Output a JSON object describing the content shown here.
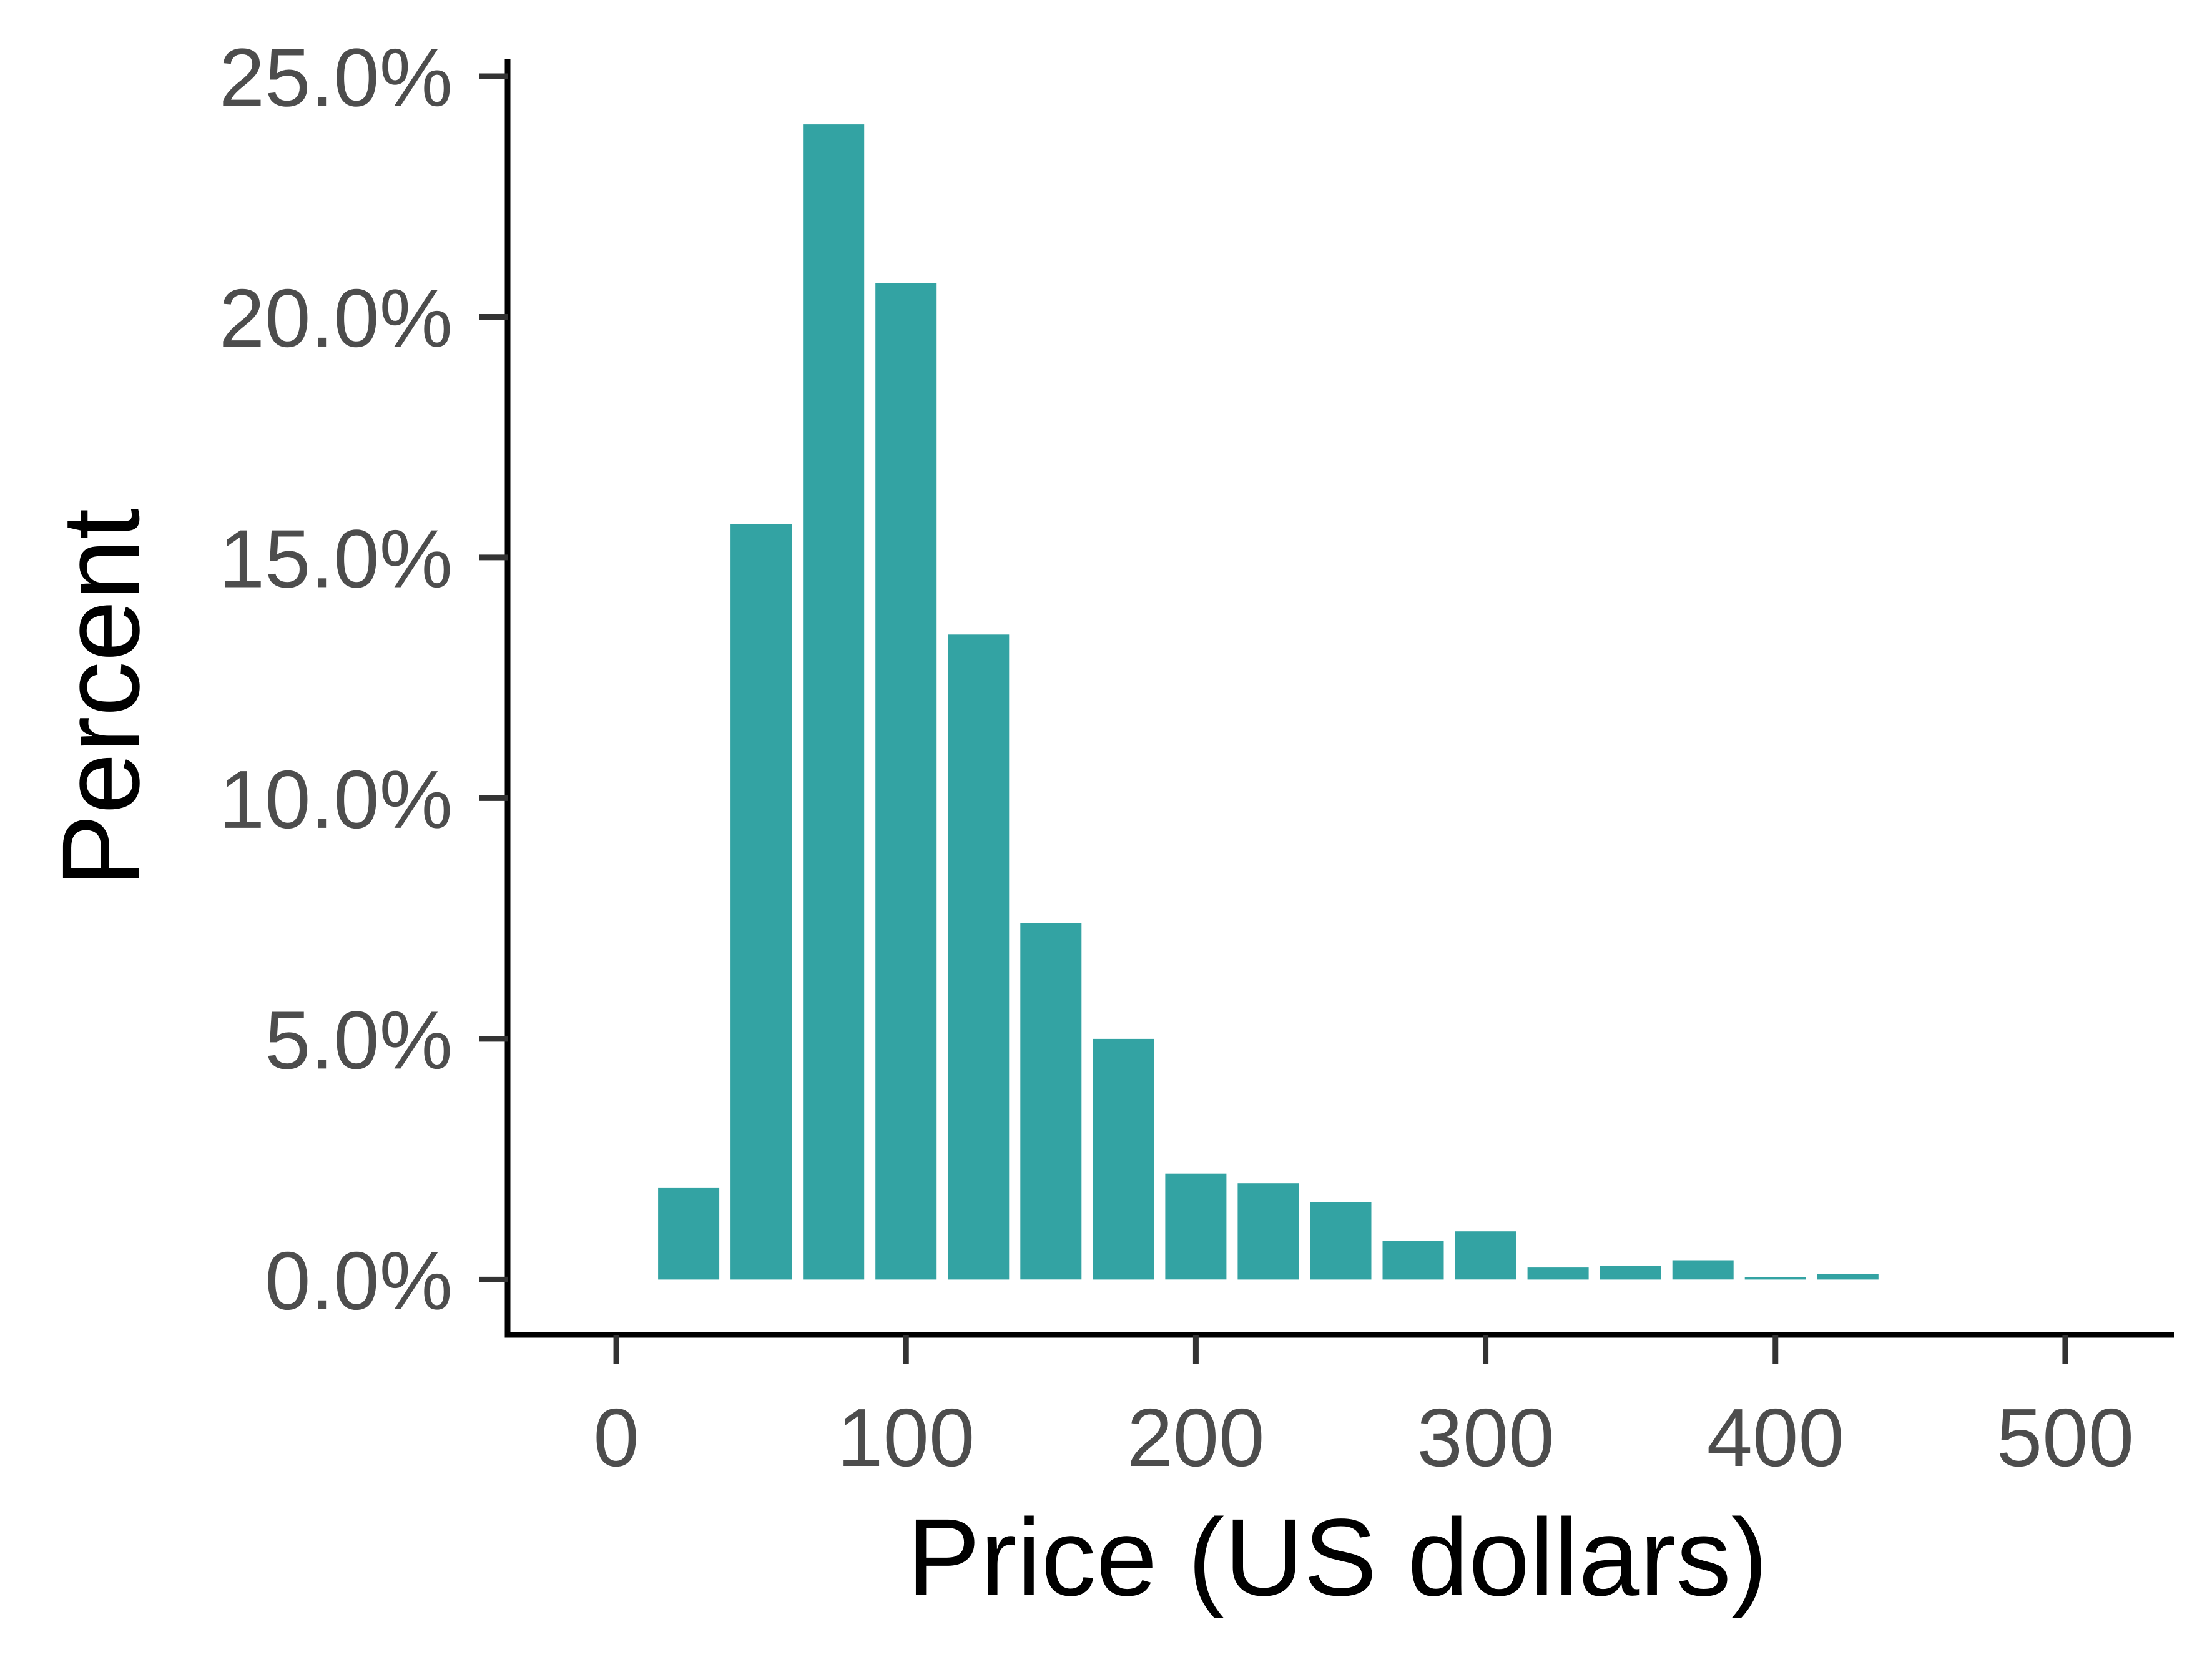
{
  "chart_data": {
    "type": "bar",
    "title": "",
    "xlabel": "Price (US dollars)",
    "ylabel": "Percent",
    "bin_width": 25,
    "bins": [
      {
        "x_start": 12.5,
        "x_end": 37.5,
        "value": 1.9
      },
      {
        "x_start": 37.5,
        "x_end": 62.5,
        "value": 15.7
      },
      {
        "x_start": 62.5,
        "x_end": 87.5,
        "value": 24.0
      },
      {
        "x_start": 87.5,
        "x_end": 112.5,
        "value": 20.7
      },
      {
        "x_start": 112.5,
        "x_end": 137.5,
        "value": 13.4
      },
      {
        "x_start": 137.5,
        "x_end": 162.5,
        "value": 7.4
      },
      {
        "x_start": 162.5,
        "x_end": 187.5,
        "value": 5.0
      },
      {
        "x_start": 187.5,
        "x_end": 212.5,
        "value": 2.2
      },
      {
        "x_start": 212.5,
        "x_end": 237.5,
        "value": 2.0
      },
      {
        "x_start": 237.5,
        "x_end": 262.5,
        "value": 1.6
      },
      {
        "x_start": 262.5,
        "x_end": 287.5,
        "value": 0.8
      },
      {
        "x_start": 287.5,
        "x_end": 312.5,
        "value": 1.0
      },
      {
        "x_start": 312.5,
        "x_end": 337.5,
        "value": 0.25
      },
      {
        "x_start": 337.5,
        "x_end": 362.5,
        "value": 0.28
      },
      {
        "x_start": 362.5,
        "x_end": 387.5,
        "value": 0.4
      },
      {
        "x_start": 387.5,
        "x_end": 412.5,
        "value": 0.05
      },
      {
        "x_start": 412.5,
        "x_end": 437.5,
        "value": 0.12
      }
    ],
    "xlim": [
      -37.5,
      537.5
    ],
    "ylim": [
      -1.15,
      25.35
    ],
    "x_ticks": [
      0,
      100,
      200,
      300,
      400,
      500
    ],
    "x_tick_labels": [
      "0",
      "100",
      "200",
      "300",
      "400",
      "500"
    ],
    "y_ticks": [
      0,
      5,
      10,
      15,
      20,
      25
    ],
    "y_tick_labels": [
      "0.0%",
      "5.0%",
      "10.0%",
      "15.0%",
      "20.0%",
      "25.0%"
    ],
    "grid": false,
    "legend": "none",
    "colors": {
      "bar": "#33a3a3",
      "axis": "#000000",
      "tick_label": "#4d4d4d",
      "axis_title": "#000000"
    }
  }
}
